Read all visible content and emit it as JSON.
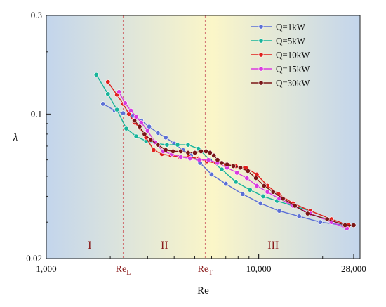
{
  "chart_data": {
    "type": "line",
    "xlabel": "Re",
    "ylabel": "λ",
    "xscale": "log",
    "yscale": "log",
    "xlim": [
      1000,
      30000
    ],
    "ylim": [
      0.02,
      0.3
    ],
    "x_ticks": [
      {
        "value": 1000,
        "label": "1,000"
      },
      {
        "value": 10000,
        "label": "10,000"
      },
      {
        "value": 28000,
        "label": "28,000"
      }
    ],
    "y_ticks": [
      {
        "value": 0.02,
        "label": "0.02"
      },
      {
        "value": 0.1,
        "label": "0.1"
      },
      {
        "value": 0.3,
        "label": "0.3"
      }
    ],
    "reference_lines": [
      {
        "value": 2300,
        "label_main": "Re",
        "label_sub": "L"
      },
      {
        "value": 5600,
        "label_main": "Re",
        "label_sub": "T"
      }
    ],
    "regions": [
      {
        "label": "I",
        "x": 1600
      },
      {
        "label": "II",
        "x": 3600
      },
      {
        "label": "III",
        "x": 11700
      }
    ],
    "background": {
      "left": "#c3d5ec",
      "middle": "#fbf6c8",
      "right": "#c3d5ec"
    },
    "legend_position": "top-right",
    "series": [
      {
        "name": "Q=1kW",
        "color": "#5b6fd6",
        "x": [
          1850,
          2100,
          2300,
          2550,
          2800,
          3050,
          3350,
          3650,
          4000,
          4400,
          4800,
          5300,
          6000,
          7000,
          8400,
          10200,
          12500,
          15500,
          19500,
          25000
        ],
        "y": [
          0.112,
          0.104,
          0.101,
          0.098,
          0.093,
          0.087,
          0.081,
          0.077,
          0.072,
          0.067,
          0.063,
          0.058,
          0.051,
          0.046,
          0.041,
          0.037,
          0.034,
          0.032,
          0.03,
          0.029
        ]
      },
      {
        "name": "Q=5kW",
        "color": "#18b49a",
        "x": [
          1720,
          1950,
          2150,
          2380,
          2650,
          2950,
          3300,
          3700,
          4150,
          4650,
          5200,
          5900,
          6700,
          7800,
          9100,
          10500,
          12200,
          14500,
          17500
        ],
        "y": [
          0.155,
          0.125,
          0.105,
          0.085,
          0.078,
          0.074,
          0.072,
          0.071,
          0.071,
          0.071,
          0.068,
          0.06,
          0.054,
          0.047,
          0.043,
          0.04,
          0.038,
          0.036,
          0.034
        ]
      },
      {
        "name": "Q=10kW",
        "color": "#e0201c",
        "x": [
          1950,
          2150,
          2300,
          2450,
          2600,
          2750,
          2950,
          3200,
          3500,
          3850,
          4250,
          4700,
          5200,
          5700,
          6300,
          7000,
          7800,
          8700,
          9800,
          11000,
          12400,
          14500,
          17500,
          22000,
          26500
        ],
        "y": [
          0.143,
          0.124,
          0.112,
          0.1,
          0.091,
          0.086,
          0.077,
          0.067,
          0.064,
          0.063,
          0.062,
          0.062,
          0.061,
          0.059,
          0.058,
          0.057,
          0.056,
          0.055,
          0.051,
          0.045,
          0.041,
          0.037,
          0.034,
          0.031,
          0.029
        ]
      },
      {
        "name": "Q=15kW",
        "color": "#d93ae0",
        "x": [
          2200,
          2350,
          2500,
          2650,
          2800,
          3000,
          3250,
          3550,
          3900,
          4300,
          4750,
          5250,
          5800,
          6400,
          7100,
          7900,
          8800,
          9800,
          11000,
          12500,
          14500,
          17500,
          22000,
          26000
        ],
        "y": [
          0.128,
          0.113,
          0.104,
          0.097,
          0.091,
          0.083,
          0.073,
          0.066,
          0.064,
          0.062,
          0.061,
          0.06,
          0.06,
          0.058,
          0.055,
          0.052,
          0.049,
          0.045,
          0.042,
          0.039,
          0.036,
          0.033,
          0.03,
          0.028
        ]
      },
      {
        "name": "Q=30kW",
        "color": "#7a1616",
        "x": [
          2600,
          2750,
          2900,
          3100,
          3350,
          3650,
          3950,
          4300,
          4650,
          5000,
          5350,
          5650,
          5900,
          6150,
          6400,
          6700,
          7100,
          7600,
          8200,
          8900,
          9700,
          10600,
          11700,
          13000,
          14800,
          17000,
          21000,
          25500,
          28000
        ],
        "y": [
          0.093,
          0.087,
          0.08,
          0.075,
          0.071,
          0.067,
          0.066,
          0.066,
          0.065,
          0.065,
          0.066,
          0.066,
          0.065,
          0.063,
          0.06,
          0.058,
          0.057,
          0.056,
          0.055,
          0.053,
          0.049,
          0.045,
          0.042,
          0.039,
          0.036,
          0.033,
          0.031,
          0.029,
          0.029
        ]
      }
    ]
  }
}
